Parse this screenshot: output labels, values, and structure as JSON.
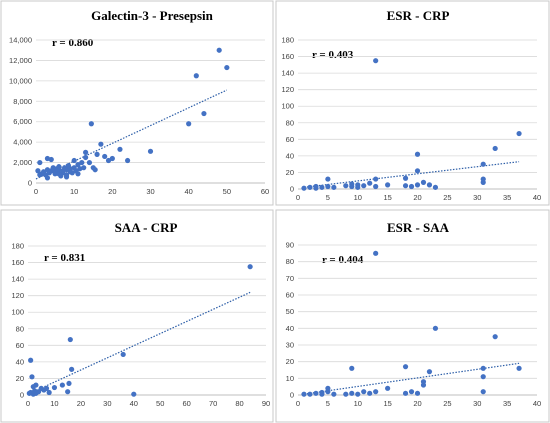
{
  "chart_data": [
    {
      "type": "scatter",
      "title": "Galectin-3 - Presepsin",
      "annotation": "r = 0.860",
      "xlim": [
        0,
        60
      ],
      "xticks": [
        0,
        10,
        20,
        30,
        40,
        50,
        60
      ],
      "ylim": [
        0,
        14000
      ],
      "yticks": [
        "0",
        "2,000",
        "4,000",
        "6,000",
        "8,000",
        "10,000",
        "12,000",
        "14,000"
      ],
      "grid": "horizontal",
      "trendline": {
        "x": [
          0,
          50
        ],
        "y": [
          400,
          9100
        ]
      },
      "points": [
        [
          0.5,
          1200
        ],
        [
          1,
          800
        ],
        [
          1.5,
          900
        ],
        [
          2,
          1000
        ],
        [
          2,
          1100
        ],
        [
          2.5,
          800
        ],
        [
          3,
          1300
        ],
        [
          3,
          2400
        ],
        [
          3.5,
          1000
        ],
        [
          4,
          1200
        ],
        [
          4,
          2300
        ],
        [
          4.5,
          1500
        ],
        [
          5,
          900
        ],
        [
          5,
          1100
        ],
        [
          5.5,
          1400
        ],
        [
          6,
          1300
        ],
        [
          6,
          1600
        ],
        [
          6.5,
          700
        ],
        [
          7,
          1000
        ],
        [
          7,
          1200
        ],
        [
          7.5,
          1500
        ],
        [
          8,
          800
        ],
        [
          8,
          1300
        ],
        [
          8.5,
          1700
        ],
        [
          9,
          1100
        ],
        [
          9,
          1400
        ],
        [
          9.5,
          1000
        ],
        [
          10,
          1500
        ],
        [
          10,
          2200
        ],
        [
          10.5,
          1200
        ],
        [
          11,
          1800
        ],
        [
          11.5,
          1400
        ],
        [
          12,
          2000
        ],
        [
          12.5,
          1500
        ],
        [
          13,
          2500
        ],
        [
          13,
          3000
        ],
        [
          14,
          2000
        ],
        [
          14.5,
          5800
        ],
        [
          15,
          1500
        ],
        [
          15.5,
          1300
        ],
        [
          16,
          2800
        ],
        [
          17,
          3800
        ],
        [
          18,
          2600
        ],
        [
          19,
          2200
        ],
        [
          20,
          2400
        ],
        [
          22,
          3300
        ],
        [
          24,
          2200
        ],
        [
          30,
          3100
        ],
        [
          40,
          5800
        ],
        [
          42,
          10500
        ],
        [
          44,
          6800
        ],
        [
          48,
          13000
        ],
        [
          50,
          11300
        ],
        [
          1,
          2000
        ],
        [
          6,
          900
        ],
        [
          8,
          600
        ],
        [
          11,
          900
        ],
        [
          3,
          500
        ]
      ]
    },
    {
      "type": "scatter",
      "title": "ESR - CRP",
      "annotation": "r = 0.403",
      "xlim": [
        0,
        40
      ],
      "xticks": [
        0,
        5,
        10,
        15,
        20,
        25,
        30,
        35,
        40
      ],
      "ylim": [
        0,
        180
      ],
      "yticks": [
        "0",
        "20",
        "40",
        "60",
        "80",
        "100",
        "120",
        "140",
        "160",
        "180"
      ],
      "grid": "horizontal",
      "trendline": {
        "x": [
          1,
          37
        ],
        "y": [
          2,
          33
        ]
      },
      "points": [
        [
          1,
          1
        ],
        [
          2,
          2
        ],
        [
          3,
          1
        ],
        [
          3,
          3
        ],
        [
          4,
          2
        ],
        [
          5,
          3
        ],
        [
          5,
          12
        ],
        [
          6,
          2
        ],
        [
          8,
          4
        ],
        [
          9,
          3
        ],
        [
          9,
          6
        ],
        [
          10,
          2
        ],
        [
          10,
          5
        ],
        [
          11,
          4
        ],
        [
          12,
          7
        ],
        [
          13,
          3
        ],
        [
          13,
          155
        ],
        [
          13,
          12
        ],
        [
          15,
          5
        ],
        [
          18,
          4
        ],
        [
          18,
          13
        ],
        [
          19,
          3
        ],
        [
          20,
          22
        ],
        [
          20,
          42
        ],
        [
          21,
          8
        ],
        [
          22,
          5
        ],
        [
          23,
          2
        ],
        [
          20,
          5
        ],
        [
          31,
          8
        ],
        [
          31,
          12
        ],
        [
          31,
          30
        ],
        [
          33,
          49
        ],
        [
          37,
          67
        ]
      ]
    },
    {
      "type": "scatter",
      "title": "SAA - CRP",
      "annotation": "r = 0.831",
      "xlim": [
        0,
        90
      ],
      "xticks": [
        0,
        10,
        20,
        30,
        40,
        50,
        60,
        70,
        80,
        90
      ],
      "ylim": [
        0,
        180
      ],
      "yticks": [
        "0",
        "20",
        "40",
        "60",
        "80",
        "100",
        "120",
        "140",
        "160",
        "180"
      ],
      "grid": "horizontal",
      "trendline": {
        "x": [
          0,
          84
        ],
        "y": [
          1,
          124
        ]
      },
      "points": [
        [
          0.5,
          2
        ],
        [
          1,
          3
        ],
        [
          1,
          42
        ],
        [
          1.5,
          22
        ],
        [
          2,
          1
        ],
        [
          2,
          10
        ],
        [
          2.5,
          5
        ],
        [
          3,
          2
        ],
        [
          3,
          12
        ],
        [
          4,
          4
        ],
        [
          5,
          8
        ],
        [
          6,
          6
        ],
        [
          7,
          8
        ],
        [
          8,
          3
        ],
        [
          10,
          9
        ],
        [
          13,
          12
        ],
        [
          15,
          4
        ],
        [
          15.5,
          14
        ],
        [
          16,
          67
        ],
        [
          16.5,
          31
        ],
        [
          36,
          49
        ],
        [
          40,
          1
        ],
        [
          84,
          155
        ]
      ]
    },
    {
      "type": "scatter",
      "title": "ESR - SAA",
      "annotation": "r = 0.404",
      "xlim": [
        0,
        40
      ],
      "xticks": [
        0,
        5,
        10,
        15,
        20,
        25,
        30,
        35,
        40
      ],
      "ylim": [
        0,
        90
      ],
      "yticks": [
        "0",
        "10",
        "20",
        "30",
        "40",
        "50",
        "60",
        "70",
        "80",
        "90"
      ],
      "grid": "horizontal",
      "trendline": {
        "x": [
          1,
          37
        ],
        "y": [
          0.5,
          19
        ]
      },
      "points": [
        [
          1,
          0.5
        ],
        [
          2,
          0.5
        ],
        [
          3,
          1
        ],
        [
          4,
          0.5
        ],
        [
          4,
          1.5
        ],
        [
          5,
          2
        ],
        [
          5,
          4
        ],
        [
          6,
          0.5
        ],
        [
          8,
          0.5
        ],
        [
          9,
          1
        ],
        [
          9,
          16
        ],
        [
          10,
          0.5
        ],
        [
          11,
          2
        ],
        [
          12,
          1
        ],
        [
          13,
          85
        ],
        [
          13,
          2
        ],
        [
          15,
          4
        ],
        [
          18,
          17
        ],
        [
          18,
          1
        ],
        [
          19,
          2
        ],
        [
          20,
          1
        ],
        [
          21,
          6
        ],
        [
          21,
          8
        ],
        [
          22,
          14
        ],
        [
          23,
          40
        ],
        [
          31,
          2
        ],
        [
          31,
          11
        ],
        [
          31,
          16
        ],
        [
          33,
          35
        ],
        [
          37,
          16
        ]
      ]
    }
  ]
}
